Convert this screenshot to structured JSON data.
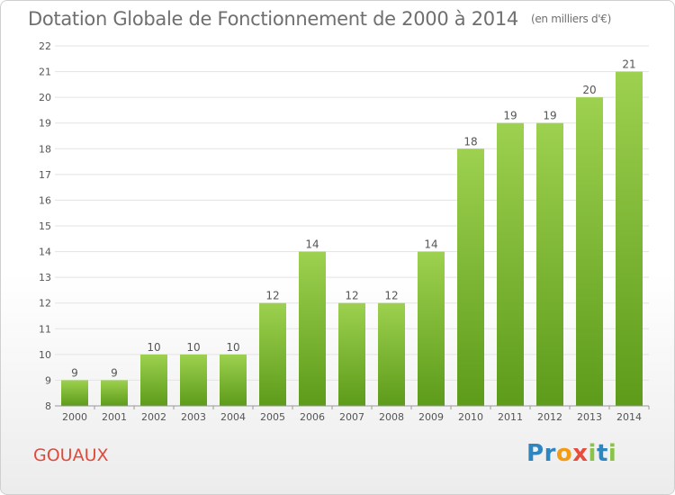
{
  "title": "Dotation Globale de Fonctionnement de 2000 à 2014",
  "unit_label": "(en milliers d'€)",
  "commune": "GOUAUX",
  "brand": {
    "letters": [
      "P",
      "r",
      "o",
      "x",
      "i",
      "t",
      "i"
    ],
    "colors": [
      "#2e86c1",
      "#2e86c1",
      "#f39c12",
      "#e74c3c",
      "#8bc34a",
      "#2e86c1",
      "#8bc34a"
    ]
  },
  "colors": {
    "bar_top": "#9dd14f",
    "bar_bottom": "#5d9b1a",
    "grid": "#e3e3e3",
    "axis_text": "#555555",
    "title": "#6f6f6f",
    "commune": "#e04a3a"
  },
  "chart_data": {
    "type": "bar",
    "title": "Dotation Globale de Fonctionnement de 2000 à 2014",
    "xlabel": "",
    "ylabel": "(en milliers d'€)",
    "categories": [
      "2000",
      "2001",
      "2002",
      "2003",
      "2004",
      "2005",
      "2006",
      "2007",
      "2008",
      "2009",
      "2010",
      "2011",
      "2012",
      "2013",
      "2014"
    ],
    "values": [
      9,
      9,
      10,
      10,
      10,
      12,
      14,
      12,
      12,
      14,
      18,
      19,
      19,
      20,
      21
    ],
    "ylim": [
      8,
      22
    ],
    "yticks": [
      8,
      9,
      10,
      11,
      12,
      13,
      14,
      15,
      16,
      17,
      18,
      19,
      20,
      21,
      22
    ],
    "grid": true,
    "data_labels": true
  }
}
